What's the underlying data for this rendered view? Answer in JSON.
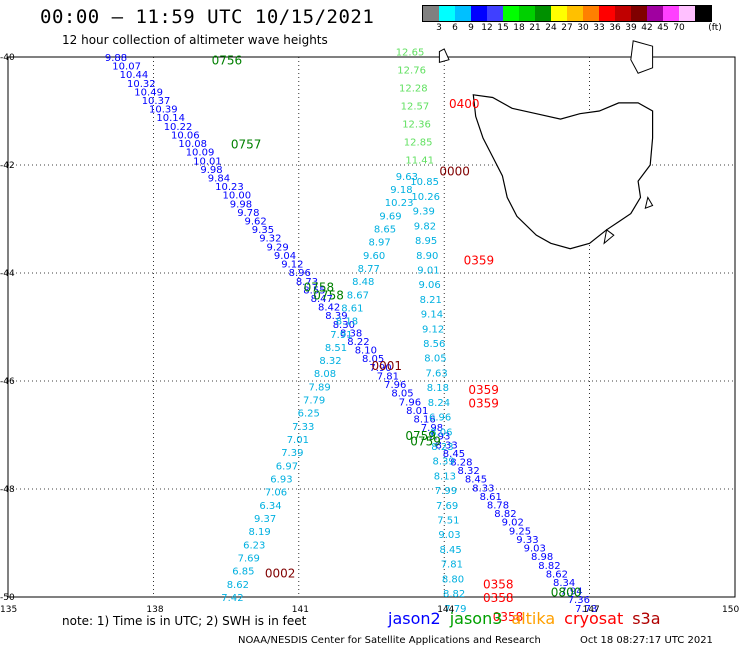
{
  "title": "00:00 – 11:59 UTC 10/15/2021",
  "subtitle": "12 hour collection of altimeter wave heights",
  "legend": {
    "unit": "(ft)",
    "colors": [
      "#808080",
      "#00ffff",
      "#00c0ff",
      "#0000ff",
      "#4040ff",
      "#00ff00",
      "#00d000",
      "#009000",
      "#ffff00",
      "#ffc000",
      "#ff8000",
      "#ff0000",
      "#c00000",
      "#800000",
      "#a000a0",
      "#ff40ff",
      "#ffc0ff",
      "#000000"
    ],
    "labels": [
      "3",
      "6",
      "9",
      "12",
      "15",
      "18",
      "21",
      "24",
      "27",
      "30",
      "33",
      "36",
      "39",
      "42",
      "45",
      "70"
    ]
  },
  "axes": {
    "lat_labels": [
      "-40",
      "-42",
      "-44",
      "-46",
      "-48",
      "-50"
    ],
    "lon_labels": [
      "135",
      "138",
      "141",
      "144",
      "147",
      "150"
    ]
  },
  "note": "note: 1) Time is in UTC; 2) SWH is in feet",
  "satellites": [
    {
      "name": "jason2",
      "color": "#0000ff"
    },
    {
      "name": "jason3",
      "color": "#00a000"
    },
    {
      "name": "altika",
      "color": "#ffa000"
    },
    {
      "name": "cryosat",
      "color": "#ff0000"
    },
    {
      "name": "s3a",
      "color": "#b00000"
    }
  ],
  "credit": "NOAA/NESDIS Center for Satellite Applications and Research",
  "generated": "Oct 18 08:27:17 UTC 2021",
  "map_data": {
    "time_labels": [
      {
        "text": "0756",
        "lon": 139.2,
        "lat": -40.05,
        "color": "#008000"
      },
      {
        "text": "0757",
        "lon": 139.6,
        "lat": -41.6,
        "color": "#008000"
      },
      {
        "text": "0400",
        "lon": 144.1,
        "lat": -40.85,
        "color": "#ff0000"
      },
      {
        "text": "0000",
        "lon": 143.9,
        "lat": -42.1,
        "color": "#800000"
      },
      {
        "text": "0359",
        "lon": 144.4,
        "lat": -43.75,
        "color": "#ff0000"
      },
      {
        "text": "0758",
        "lon": 141.1,
        "lat": -44.25,
        "color": "#008000"
      },
      {
        "text": "0758",
        "lon": 141.3,
        "lat": -44.4,
        "color": "#008000"
      },
      {
        "text": "0001",
        "lon": 142.5,
        "lat": -45.7,
        "color": "#800000"
      },
      {
        "text": "0359",
        "lon": 144.5,
        "lat": -46.15,
        "color": "#ff0000"
      },
      {
        "text": "0359",
        "lon": 144.5,
        "lat": -46.4,
        "color": "#ff0000"
      },
      {
        "text": "0759",
        "lon": 143.2,
        "lat": -47.0,
        "color": "#008000"
      },
      {
        "text": "0759",
        "lon": 143.3,
        "lat": -47.1,
        "color": "#008000"
      },
      {
        "text": "0002",
        "lon": 140.3,
        "lat": -49.55,
        "color": "#800000"
      },
      {
        "text": "0358",
        "lon": 144.8,
        "lat": -49.75,
        "color": "#ff0000"
      },
      {
        "text": "0358",
        "lon": 144.8,
        "lat": -50.0,
        "color": "#ff0000"
      },
      {
        "text": "0358",
        "lon": 145.0,
        "lat": -50.35,
        "color": "#ff0000"
      },
      {
        "text": "0800",
        "lon": 146.2,
        "lat": -49.9,
        "color": "#008000"
      }
    ],
    "tracks": [
      {
        "name": "jason3-desc",
        "color": "#0000ff",
        "lon0": 137.0,
        "lat0": -40.0,
        "lon1": 146.7,
        "lat1": -50.2,
        "values": [
          "9.88",
          "10.07",
          "10.44",
          "10.32",
          "10.49",
          "10.37",
          "10.39",
          "10.14",
          "10.22",
          "10.06",
          "10.08",
          "10.09",
          "10.01",
          "9.98",
          "9.84",
          "10.23",
          "10.00",
          "9.98",
          "9.78",
          "9.62",
          "9.35",
          "9.32",
          "9.29",
          "9.04",
          "9.12",
          "8.96",
          "8.73",
          "8.55",
          "8.47",
          "8.42",
          "8.39",
          "8.30",
          "8.38",
          "8.22",
          "8.10",
          "8.05",
          "7.90",
          "7.81",
          "7.96",
          "8.05",
          "7.96",
          "8.01",
          "8.16",
          "7.98",
          "7.93",
          "8.33",
          "8.45",
          "8.28",
          "8.32",
          "8.45",
          "8.33",
          "8.61",
          "8.78",
          "8.82",
          "9.02",
          "9.25",
          "9.33",
          "9.03",
          "8.98",
          "8.82",
          "8.62",
          "8.34",
          "7.94",
          "7.36",
          "7.73"
        ]
      },
      {
        "name": "s3a-asc",
        "color": "#00b0e0",
        "lon0": 139.4,
        "lat0": -50.0,
        "lon1": 143.0,
        "lat1": -42.2,
        "values": [
          "7.42",
          "8.62",
          "6.85",
          "7.69",
          "6.23",
          "8.19",
          "9.37",
          "6.34",
          "7.06",
          "6.93",
          "6.97",
          "7.39",
          "7.01",
          "7.33",
          "6.25",
          "7.79",
          "7.89",
          "8.08",
          "8.32",
          "8.51",
          "7.91",
          "8.18",
          "8.61",
          "8.67",
          "8.48",
          "8.77",
          "9.60",
          "8.97",
          "8.65",
          "9.69",
          "10.23",
          "9.18",
          "9.63"
        ]
      },
      {
        "name": "cryosat",
        "color": "#00b0e0",
        "lon0": 144.0,
        "lat0": -50.2,
        "lon1": 143.3,
        "lat1": -42.3,
        "values": [
          "7.79",
          "8.82",
          "8.80",
          "7.81",
          "8.45",
          "9.03",
          "7.51",
          "7.69",
          "7.99",
          "8.13",
          "8.39",
          "8.23",
          "8.06",
          "6.96",
          "8.24",
          "8.18",
          "7.63",
          "8.05",
          "8.56",
          "9.12",
          "9.14",
          "8.21",
          "9.06",
          "9.01",
          "8.90",
          "8.95",
          "9.82",
          "9.39",
          "10.26",
          "10.85"
        ]
      },
      {
        "name": "jason3-north",
        "color": "#60e060",
        "lon0": 143.0,
        "lat0": -39.9,
        "lon1": 143.2,
        "lat1": -41.9,
        "values": [
          "12.65",
          "12.76",
          "12.28",
          "12.57",
          "12.36",
          "12.85",
          "11.41"
        ]
      }
    ],
    "coast_note": "Tasmania"
  }
}
